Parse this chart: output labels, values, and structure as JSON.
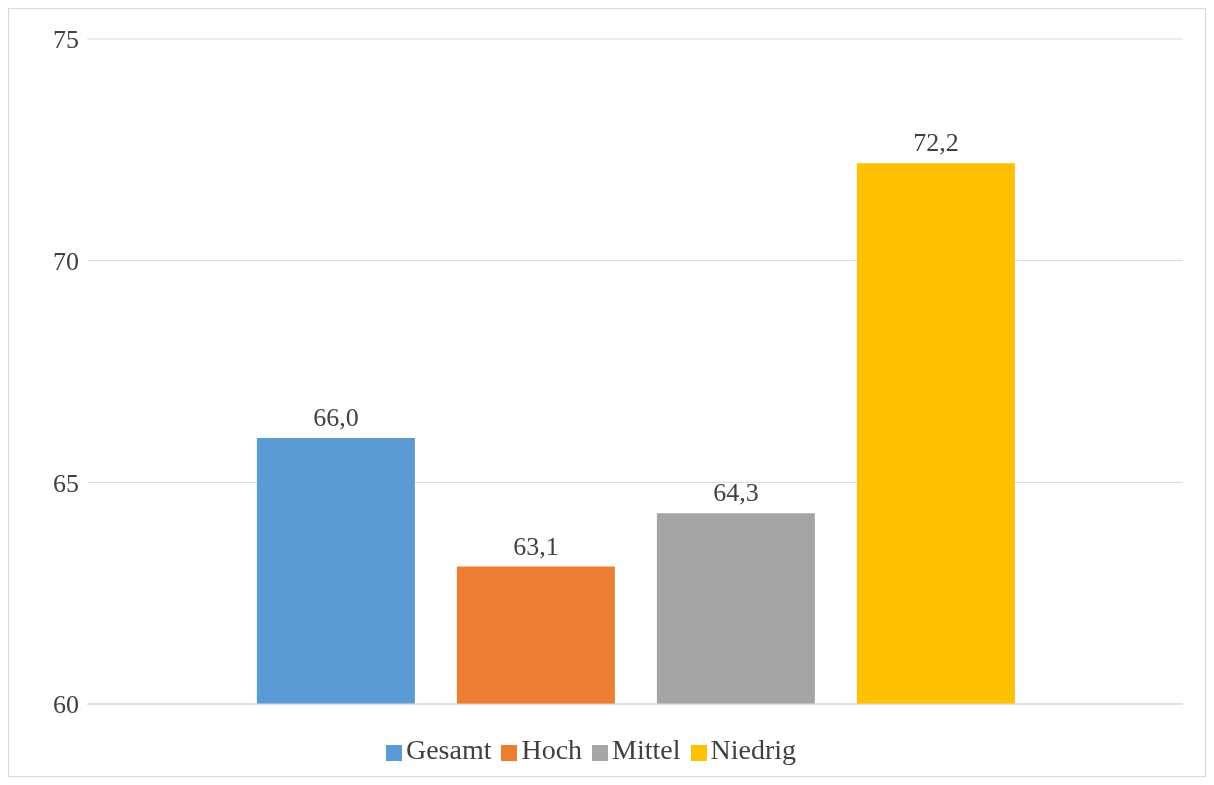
{
  "chart_data": {
    "type": "bar",
    "categories": [
      null
    ],
    "series": [
      {
        "name": "Gesamt",
        "color": "#5b9bd5",
        "values": [
          66.0
        ],
        "value_labels": [
          "66,0"
        ]
      },
      {
        "name": "Hoch",
        "color": "#ed7d31",
        "values": [
          63.1
        ],
        "value_labels": [
          "63,1"
        ]
      },
      {
        "name": "Mittel",
        "color": "#a5a5a5",
        "values": [
          64.3
        ],
        "value_labels": [
          "64,3"
        ]
      },
      {
        "name": "Niedrig",
        "color": "#ffc000",
        "values": [
          72.2
        ],
        "value_labels": [
          "72,2"
        ]
      }
    ],
    "ylim": [
      60,
      75
    ],
    "yticks": [
      60,
      65,
      70,
      75
    ],
    "grid": "y",
    "legend": "bottom",
    "tick_labels": "y"
  }
}
